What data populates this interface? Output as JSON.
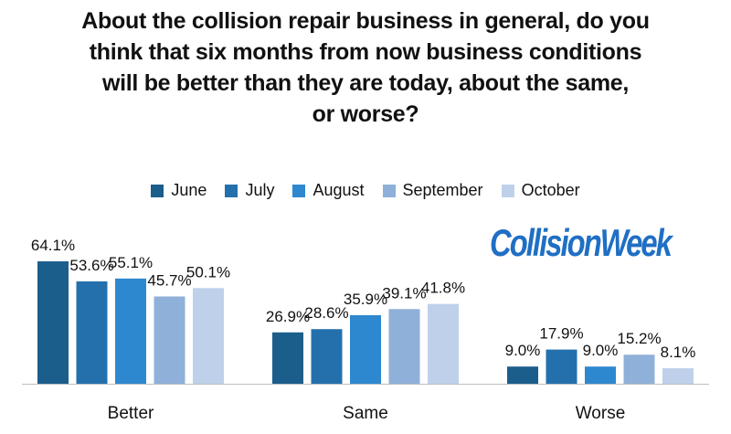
{
  "chart_data": {
    "type": "bar",
    "title": "About the collision repair business in general, do you think that six months from now business conditions will be better than they are today, about the same, or worse?",
    "categories": [
      "Better",
      "Same",
      "Worse"
    ],
    "series": [
      {
        "name": "June",
        "color": "#1b5e8c",
        "values": [
          64.1,
          26.9,
          9.0
        ],
        "labels": [
          "64.1%",
          "26.9%",
          "9.0%"
        ]
      },
      {
        "name": "July",
        "color": "#2470ad",
        "values": [
          53.6,
          28.6,
          17.9
        ],
        "labels": [
          "53.6%",
          "28.6%",
          "17.9%"
        ]
      },
      {
        "name": "August",
        "color": "#2e88cf",
        "values": [
          55.1,
          35.9,
          9.0
        ],
        "labels": [
          "55.1%",
          "35.9%",
          "9.0%"
        ]
      },
      {
        "name": "September",
        "color": "#8fb0d9",
        "values": [
          45.7,
          39.1,
          15.2
        ],
        "labels": [
          "45.7%",
          "39.1%",
          "15.2%"
        ]
      },
      {
        "name": "October",
        "color": "#bfd0ea",
        "values": [
          50.1,
          41.8,
          8.1
        ],
        "labels": [
          "50.1%",
          "41.8%",
          "8.1%"
        ]
      }
    ],
    "ylim": [
      0,
      100
    ],
    "grid": false,
    "legend": "top"
  },
  "title_display": "About the collision repair business in general, do you\nthink that six months from now business conditions\nwill be better than they are today, about the same,\nor worse?",
  "logo_text": "CollisionWeek"
}
